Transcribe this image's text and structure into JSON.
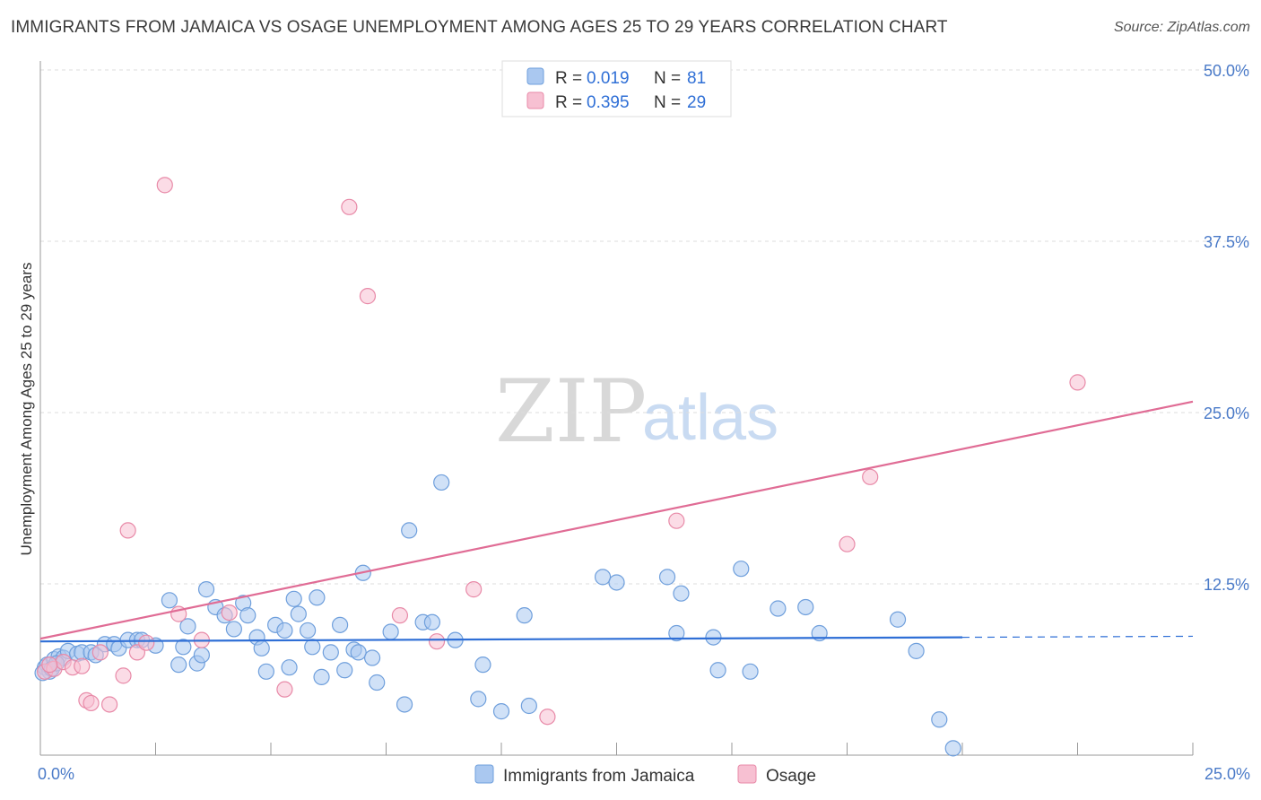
{
  "title": "IMMIGRANTS FROM JAMAICA VS OSAGE UNEMPLOYMENT AMONG AGES 25 TO 29 YEARS CORRELATION CHART",
  "source": "Source: ZipAtlas.com",
  "watermark": {
    "zip": "ZIP",
    "atlas": "atlas"
  },
  "colors": {
    "blue_fill": "#aac8f0",
    "blue_stroke": "#6f9fdc",
    "blue_line": "#2f6fd6",
    "pink_fill": "#f7c0d2",
    "pink_stroke": "#e88aa8",
    "pink_line": "#e06c95",
    "tick_text": "#4a7ac8",
    "grid": "#dddddd"
  },
  "legend": {
    "rows": [
      {
        "r_label": "R =",
        "r_value": "0.019",
        "n_label": "N =",
        "n_value": "81",
        "color": "blue"
      },
      {
        "r_label": "R =",
        "r_value": "0.395",
        "n_label": "N =",
        "n_value": "29",
        "color": "pink"
      }
    ]
  },
  "bottom_legend": [
    {
      "label": "Immigrants from Jamaica",
      "color": "blue"
    },
    {
      "label": "Osage",
      "color": "pink"
    }
  ],
  "chart_data": {
    "type": "scatter",
    "title": "IMMIGRANTS FROM JAMAICA VS OSAGE UNEMPLOYMENT AMONG AGES 25 TO 29 YEARS CORRELATION CHART",
    "xlabel": "",
    "ylabel": "Unemployment Among Ages 25 to 29 years",
    "xlim": [
      0,
      25
    ],
    "ylim": [
      0,
      50
    ],
    "x_tick_labels": [
      "0.0%",
      "25.0%"
    ],
    "y_ticks": [
      12.5,
      25.0,
      37.5,
      50.0
    ],
    "y_tick_labels": [
      "12.5%",
      "25.0%",
      "37.5%",
      "50.0%"
    ],
    "grid": true,
    "legend_position": "top-center",
    "series": [
      {
        "name": "Immigrants from Jamaica",
        "color": "blue",
        "R": 0.019,
        "N": 81,
        "trend": {
          "x0": 0,
          "y0": 8.3,
          "x1": 20,
          "y1": 8.6,
          "dash_to": 25
        },
        "points": [
          [
            0.1,
            6.4
          ],
          [
            0.15,
            6.6
          ],
          [
            0.2,
            6.1
          ],
          [
            0.3,
            7.0
          ],
          [
            0.4,
            7.2
          ],
          [
            0.5,
            7.1
          ],
          [
            0.6,
            7.6
          ],
          [
            0.8,
            7.4
          ],
          [
            0.9,
            7.5
          ],
          [
            1.1,
            7.5
          ],
          [
            1.2,
            7.3
          ],
          [
            1.4,
            8.1
          ],
          [
            1.6,
            8.1
          ],
          [
            1.7,
            7.8
          ],
          [
            1.9,
            8.4
          ],
          [
            2.1,
            8.4
          ],
          [
            2.2,
            8.4
          ],
          [
            2.5,
            8.0
          ],
          [
            2.8,
            11.3
          ],
          [
            3.0,
            6.6
          ],
          [
            3.1,
            7.9
          ],
          [
            3.2,
            9.4
          ],
          [
            3.4,
            6.7
          ],
          [
            3.5,
            7.3
          ],
          [
            3.6,
            12.1
          ],
          [
            3.8,
            10.8
          ],
          [
            4.0,
            10.2
          ],
          [
            4.2,
            9.2
          ],
          [
            4.4,
            11.1
          ],
          [
            4.5,
            10.2
          ],
          [
            4.7,
            8.6
          ],
          [
            4.8,
            7.8
          ],
          [
            4.9,
            6.1
          ],
          [
            5.1,
            9.5
          ],
          [
            5.3,
            9.1
          ],
          [
            5.4,
            6.4
          ],
          [
            5.5,
            11.4
          ],
          [
            5.6,
            10.3
          ],
          [
            5.8,
            9.1
          ],
          [
            5.9,
            7.9
          ],
          [
            6.0,
            11.5
          ],
          [
            6.1,
            5.7
          ],
          [
            6.3,
            7.5
          ],
          [
            6.5,
            9.5
          ],
          [
            6.6,
            6.2
          ],
          [
            6.8,
            7.7
          ],
          [
            6.9,
            7.5
          ],
          [
            7.0,
            13.3
          ],
          [
            7.2,
            7.1
          ],
          [
            7.3,
            5.3
          ],
          [
            7.6,
            9.0
          ],
          [
            7.9,
            3.7
          ],
          [
            8.0,
            16.4
          ],
          [
            8.3,
            9.7
          ],
          [
            8.5,
            9.7
          ],
          [
            8.7,
            19.9
          ],
          [
            9.0,
            8.4
          ],
          [
            9.5,
            4.1
          ],
          [
            9.6,
            6.6
          ],
          [
            10.0,
            3.2
          ],
          [
            10.5,
            10.2
          ],
          [
            10.6,
            3.6
          ],
          [
            12.2,
            13.0
          ],
          [
            12.5,
            12.6
          ],
          [
            13.6,
            13.0
          ],
          [
            13.8,
            8.9
          ],
          [
            13.9,
            11.8
          ],
          [
            14.6,
            8.6
          ],
          [
            14.7,
            6.2
          ],
          [
            15.2,
            13.6
          ],
          [
            15.4,
            6.1
          ],
          [
            16.0,
            10.7
          ],
          [
            16.6,
            10.8
          ],
          [
            16.9,
            8.9
          ],
          [
            18.6,
            9.9
          ],
          [
            19.0,
            7.6
          ],
          [
            19.5,
            2.6
          ],
          [
            19.8,
            0.5
          ],
          [
            0.05,
            6.0
          ],
          [
            0.25,
            6.3
          ],
          [
            0.35,
            6.7
          ]
        ]
      },
      {
        "name": "Osage",
        "color": "pink",
        "R": 0.395,
        "N": 29,
        "trend": {
          "x0": 0,
          "y0": 8.5,
          "x1": 25,
          "y1": 25.8
        },
        "points": [
          [
            0.1,
            6.1
          ],
          [
            0.3,
            6.3
          ],
          [
            0.5,
            6.8
          ],
          [
            0.7,
            6.4
          ],
          [
            0.9,
            6.5
          ],
          [
            1.0,
            4.0
          ],
          [
            1.1,
            3.8
          ],
          [
            1.3,
            7.5
          ],
          [
            1.5,
            3.7
          ],
          [
            1.8,
            5.8
          ],
          [
            1.9,
            16.4
          ],
          [
            2.1,
            7.5
          ],
          [
            2.3,
            8.2
          ],
          [
            2.7,
            41.6
          ],
          [
            3.0,
            10.3
          ],
          [
            3.5,
            8.4
          ],
          [
            4.1,
            10.4
          ],
          [
            5.3,
            4.8
          ],
          [
            6.7,
            40.0
          ],
          [
            7.1,
            33.5
          ],
          [
            7.8,
            10.2
          ],
          [
            8.6,
            8.3
          ],
          [
            9.4,
            12.1
          ],
          [
            11.0,
            2.8
          ],
          [
            13.8,
            17.1
          ],
          [
            17.5,
            15.4
          ],
          [
            18.0,
            20.3
          ],
          [
            22.5,
            27.2
          ],
          [
            0.2,
            6.6
          ]
        ]
      }
    ]
  }
}
